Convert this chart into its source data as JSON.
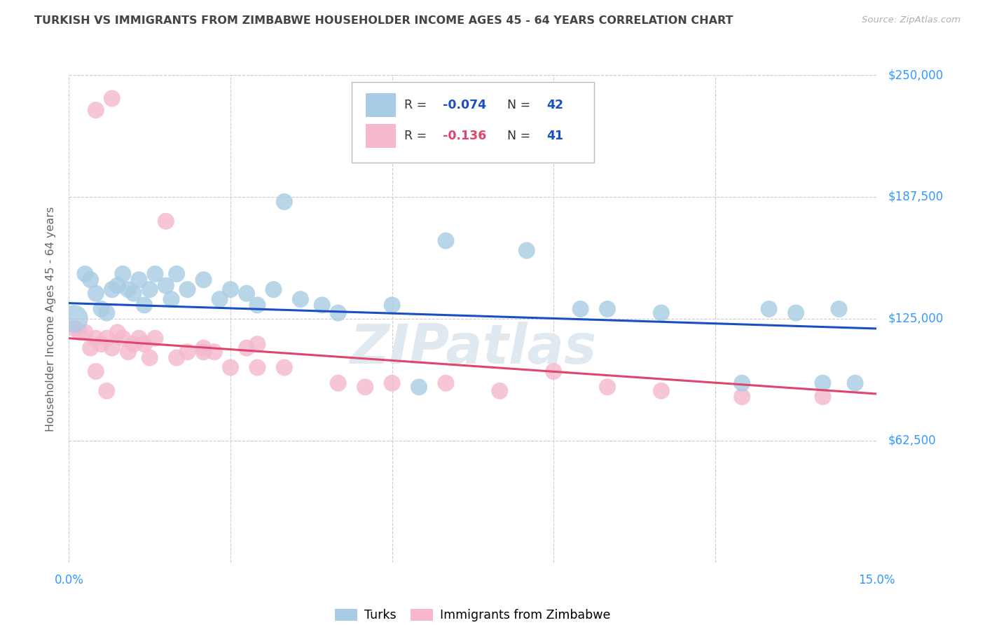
{
  "title": "TURKISH VS IMMIGRANTS FROM ZIMBABWE HOUSEHOLDER INCOME AGES 45 - 64 YEARS CORRELATION CHART",
  "source": "Source: ZipAtlas.com",
  "ylabel": "Householder Income Ages 45 - 64 years",
  "xlim": [
    0.0,
    0.15
  ],
  "ylim": [
    0,
    250000
  ],
  "ytick_vals": [
    0,
    62500,
    125000,
    187500,
    250000
  ],
  "ytick_labels_right": [
    "$62,500",
    "$125,000",
    "$187,500",
    "$250,000"
  ],
  "xtick_vals": [
    0.0,
    0.03,
    0.06,
    0.09,
    0.12,
    0.15
  ],
  "xtick_labels": [
    "0.0%",
    "",
    "",
    "",
    "",
    "15.0%"
  ],
  "blue_color": "#a8cce4",
  "pink_color": "#f5b8cc",
  "blue_line_color": "#1a4fc4",
  "pink_line_color": "#e0456e",
  "blue_label": "Turks",
  "pink_label": "Immigrants from Zimbabwe",
  "blue_R_val": "-0.074",
  "blue_N_val": "42",
  "pink_R_val": "-0.136",
  "pink_N_val": "41",
  "blue_intercept": 133000,
  "blue_slope": -87000,
  "pink_intercept": 115000,
  "pink_slope": -190000,
  "turks_x": [
    0.001,
    0.003,
    0.004,
    0.005,
    0.006,
    0.007,
    0.008,
    0.009,
    0.01,
    0.011,
    0.012,
    0.013,
    0.014,
    0.015,
    0.016,
    0.018,
    0.019,
    0.02,
    0.022,
    0.025,
    0.028,
    0.03,
    0.033,
    0.035,
    0.038,
    0.04,
    0.043,
    0.047,
    0.05,
    0.06,
    0.065,
    0.07,
    0.085,
    0.095,
    0.1,
    0.11,
    0.125,
    0.13,
    0.135,
    0.14,
    0.143,
    0.146
  ],
  "turks_y": [
    125000,
    148000,
    145000,
    138000,
    130000,
    128000,
    140000,
    142000,
    148000,
    140000,
    138000,
    145000,
    132000,
    140000,
    148000,
    142000,
    135000,
    148000,
    140000,
    145000,
    135000,
    140000,
    138000,
    132000,
    140000,
    185000,
    135000,
    132000,
    128000,
    132000,
    90000,
    165000,
    160000,
    130000,
    130000,
    128000,
    92000,
    130000,
    128000,
    92000,
    130000,
    92000
  ],
  "turks_sz": [
    800,
    300,
    300,
    300,
    300,
    300,
    300,
    300,
    300,
    300,
    300,
    300,
    300,
    300,
    300,
    300,
    300,
    300,
    300,
    300,
    300,
    300,
    300,
    300,
    300,
    300,
    300,
    300,
    300,
    300,
    300,
    300,
    300,
    300,
    300,
    300,
    300,
    300,
    300,
    300,
    300,
    300
  ],
  "zim_x": [
    0.001,
    0.002,
    0.003,
    0.004,
    0.005,
    0.005,
    0.006,
    0.007,
    0.008,
    0.008,
    0.009,
    0.01,
    0.011,
    0.012,
    0.013,
    0.014,
    0.015,
    0.016,
    0.018,
    0.02,
    0.022,
    0.025,
    0.027,
    0.03,
    0.033,
    0.035,
    0.04,
    0.05,
    0.055,
    0.06,
    0.07,
    0.08,
    0.09,
    0.1,
    0.11,
    0.125,
    0.14,
    0.005,
    0.007,
    0.025,
    0.035
  ],
  "zim_y": [
    120000,
    118000,
    118000,
    110000,
    115000,
    232000,
    112000,
    115000,
    110000,
    238000,
    118000,
    115000,
    108000,
    112000,
    115000,
    112000,
    105000,
    115000,
    175000,
    105000,
    108000,
    110000,
    108000,
    100000,
    110000,
    112000,
    100000,
    92000,
    90000,
    92000,
    92000,
    88000,
    98000,
    90000,
    88000,
    85000,
    85000,
    98000,
    88000,
    108000,
    100000
  ],
  "zim_sz": [
    300,
    300,
    300,
    300,
    300,
    300,
    300,
    300,
    300,
    300,
    300,
    300,
    300,
    300,
    300,
    300,
    300,
    300,
    300,
    300,
    300,
    300,
    300,
    300,
    300,
    300,
    300,
    300,
    300,
    300,
    300,
    300,
    300,
    300,
    300,
    300,
    300,
    300,
    300,
    300,
    300
  ],
  "background": "#ffffff",
  "grid_color": "#cccccc",
  "title_color": "#444444",
  "ylabel_color": "#666666",
  "tick_color": "#3399ff",
  "watermark_color": "#e0e8f0"
}
